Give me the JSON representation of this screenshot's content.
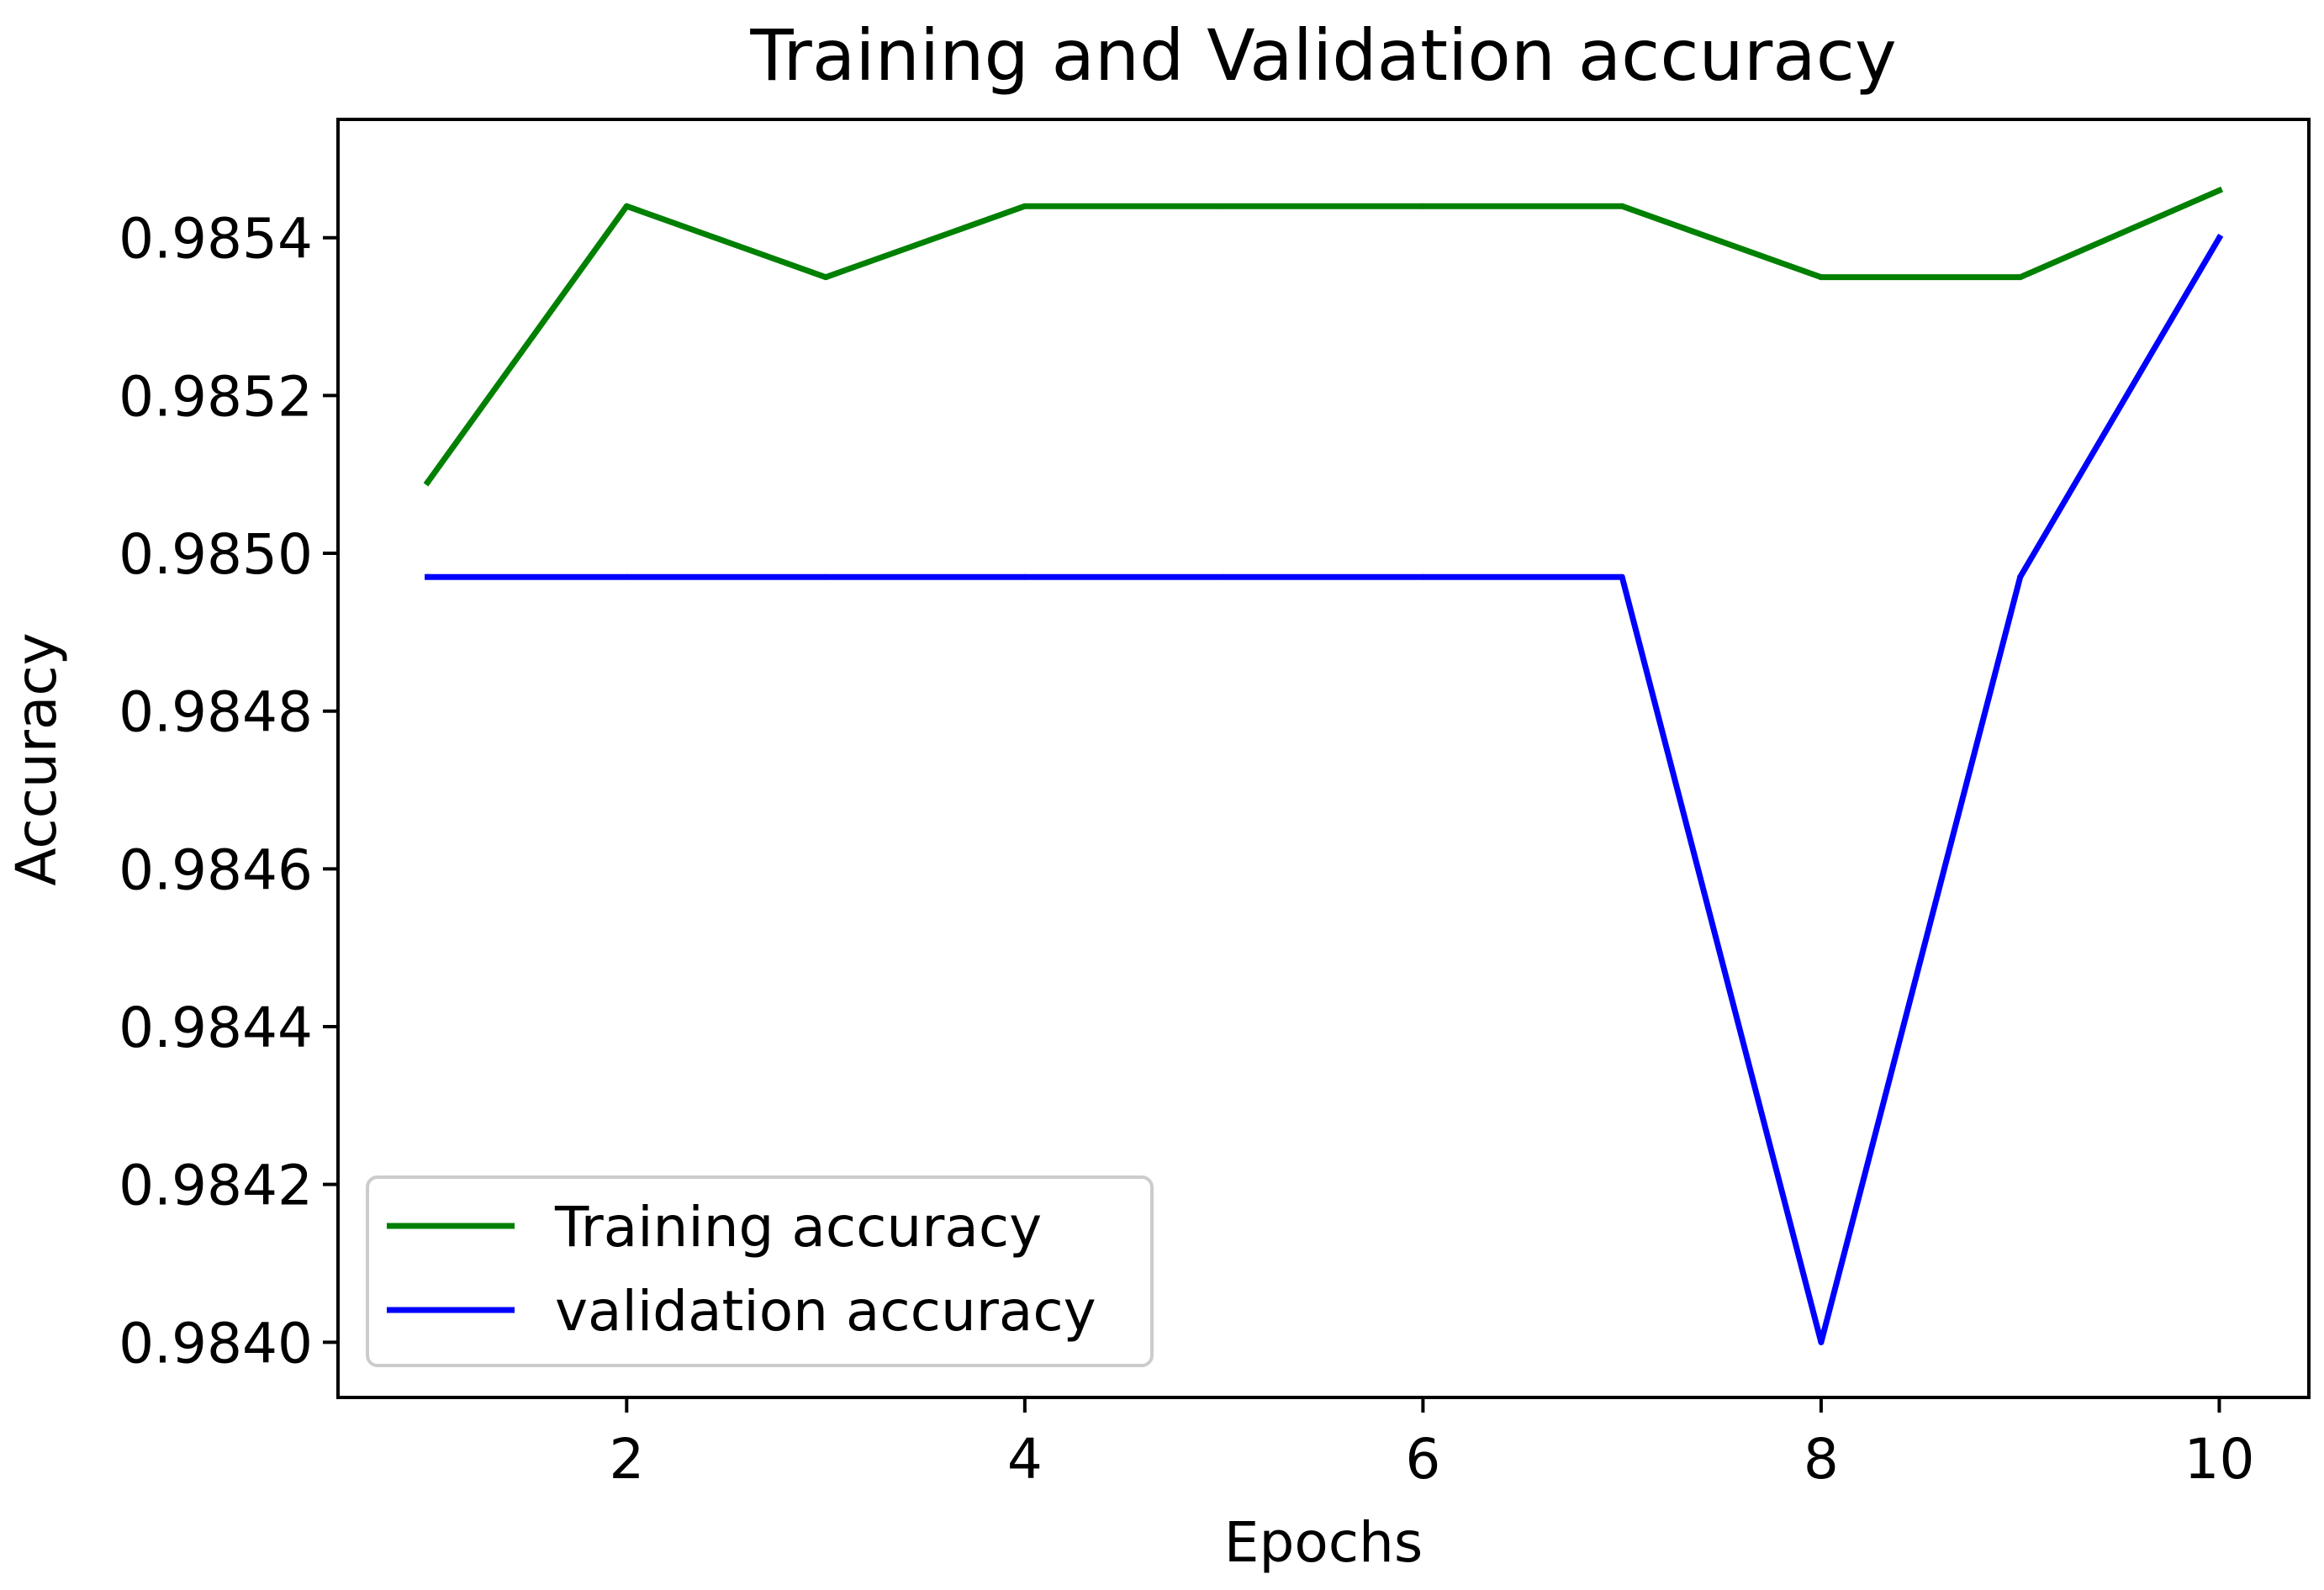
{
  "chart_data": {
    "type": "line",
    "title": "Training and Validation accuracy",
    "xlabel": "Epochs",
    "ylabel": "Accuracy",
    "x": [
      1,
      2,
      3,
      4,
      5,
      6,
      7,
      8,
      9,
      10
    ],
    "xlim": [
      0.55,
      10.45
    ],
    "ylim": [
      0.98393,
      0.98555
    ],
    "xticks": [
      2,
      4,
      6,
      8,
      10
    ],
    "xtick_labels": [
      "2",
      "4",
      "6",
      "8",
      "10"
    ],
    "yticks": [
      0.984,
      0.9842,
      0.9844,
      0.9846,
      0.9848,
      0.985,
      0.9852,
      0.9854
    ],
    "ytick_labels": [
      "0.9840",
      "0.9842",
      "0.9844",
      "0.9846",
      "0.9848",
      "0.9850",
      "0.9852",
      "0.9854"
    ],
    "grid": false,
    "legend_position": "lower-left",
    "series": [
      {
        "name": "Training accuracy",
        "color": "#008000",
        "values": [
          0.98509,
          0.98544,
          0.98535,
          0.98544,
          0.98544,
          0.98544,
          0.98544,
          0.98535,
          0.98535,
          0.98546
        ]
      },
      {
        "name": "validation accuracy",
        "color": "#0000ff",
        "values": [
          0.98497,
          0.98497,
          0.98497,
          0.98497,
          0.98497,
          0.98497,
          0.98497,
          0.984,
          0.98497,
          0.9854
        ]
      }
    ]
  }
}
